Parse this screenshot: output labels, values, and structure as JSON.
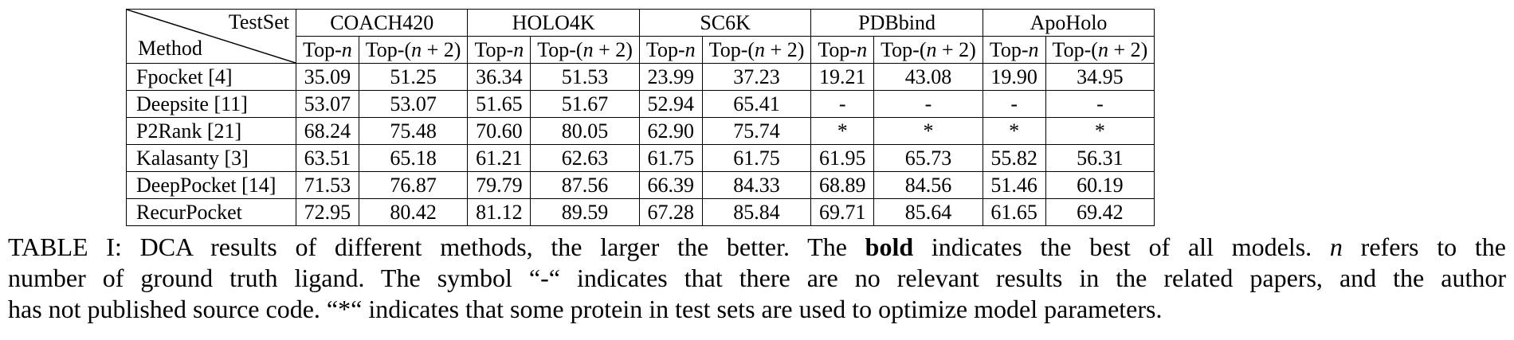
{
  "table": {
    "corner": {
      "testset_label": "TestSet",
      "method_label": "Method"
    },
    "datasets": [
      "COACH420",
      "HOLO4K",
      "SC6K",
      "PDBbind",
      "ApoHolo"
    ],
    "subheaders": {
      "top_n_prefix": "Top-",
      "n": "n",
      "top_n2_prefix": "Top-(",
      "top_n2_suffix": " + 2)"
    },
    "rows": [
      {
        "method": "Fpocket [4]",
        "values": [
          "35.09",
          "51.25",
          "36.34",
          "51.53",
          "23.99",
          "37.23",
          "19.21",
          "43.08",
          "19.90",
          "34.95"
        ]
      },
      {
        "method": "Deepsite [11]",
        "values": [
          "53.07",
          "53.07",
          "51.65",
          "51.67",
          "52.94",
          "65.41",
          "-",
          "-",
          "-",
          "-"
        ]
      },
      {
        "method": "P2Rank [21]",
        "values": [
          "68.24",
          "75.48",
          "70.60",
          "80.05",
          "62.90",
          "75.74",
          "*",
          "*",
          "*",
          "*"
        ]
      },
      {
        "method": "Kalasanty [3]",
        "values": [
          "63.51",
          "65.18",
          "61.21",
          "62.63",
          "61.75",
          "61.75",
          "61.95",
          "65.73",
          "55.82",
          "56.31"
        ]
      },
      {
        "method": "DeepPocket [14]",
        "values": [
          "71.53",
          "76.87",
          "79.79",
          "87.56",
          "66.39",
          "84.33",
          "68.89",
          "84.56",
          "51.46",
          "60.19"
        ]
      },
      {
        "method": "RecurPocket",
        "values": [
          "72.95",
          "80.42",
          "81.12",
          "89.59",
          "67.28",
          "85.84",
          "69.71",
          "85.64",
          "61.65",
          "69.42"
        ],
        "bold": true
      }
    ]
  },
  "caption": {
    "line1_a": "TABLE I: DCA results of different methods, the larger the better. The ",
    "line1_bold": "bold",
    "line1_b": " indicates the best of all models. ",
    "line1_n": "n",
    "line1_c": " refers to the",
    "line2": "number of ground truth ligand. The symbol “-“ indicates that there are no relevant results in the related papers, and the author",
    "line3": "has not published source code. “*“ indicates that some protein in test sets are used to optimize model parameters."
  }
}
